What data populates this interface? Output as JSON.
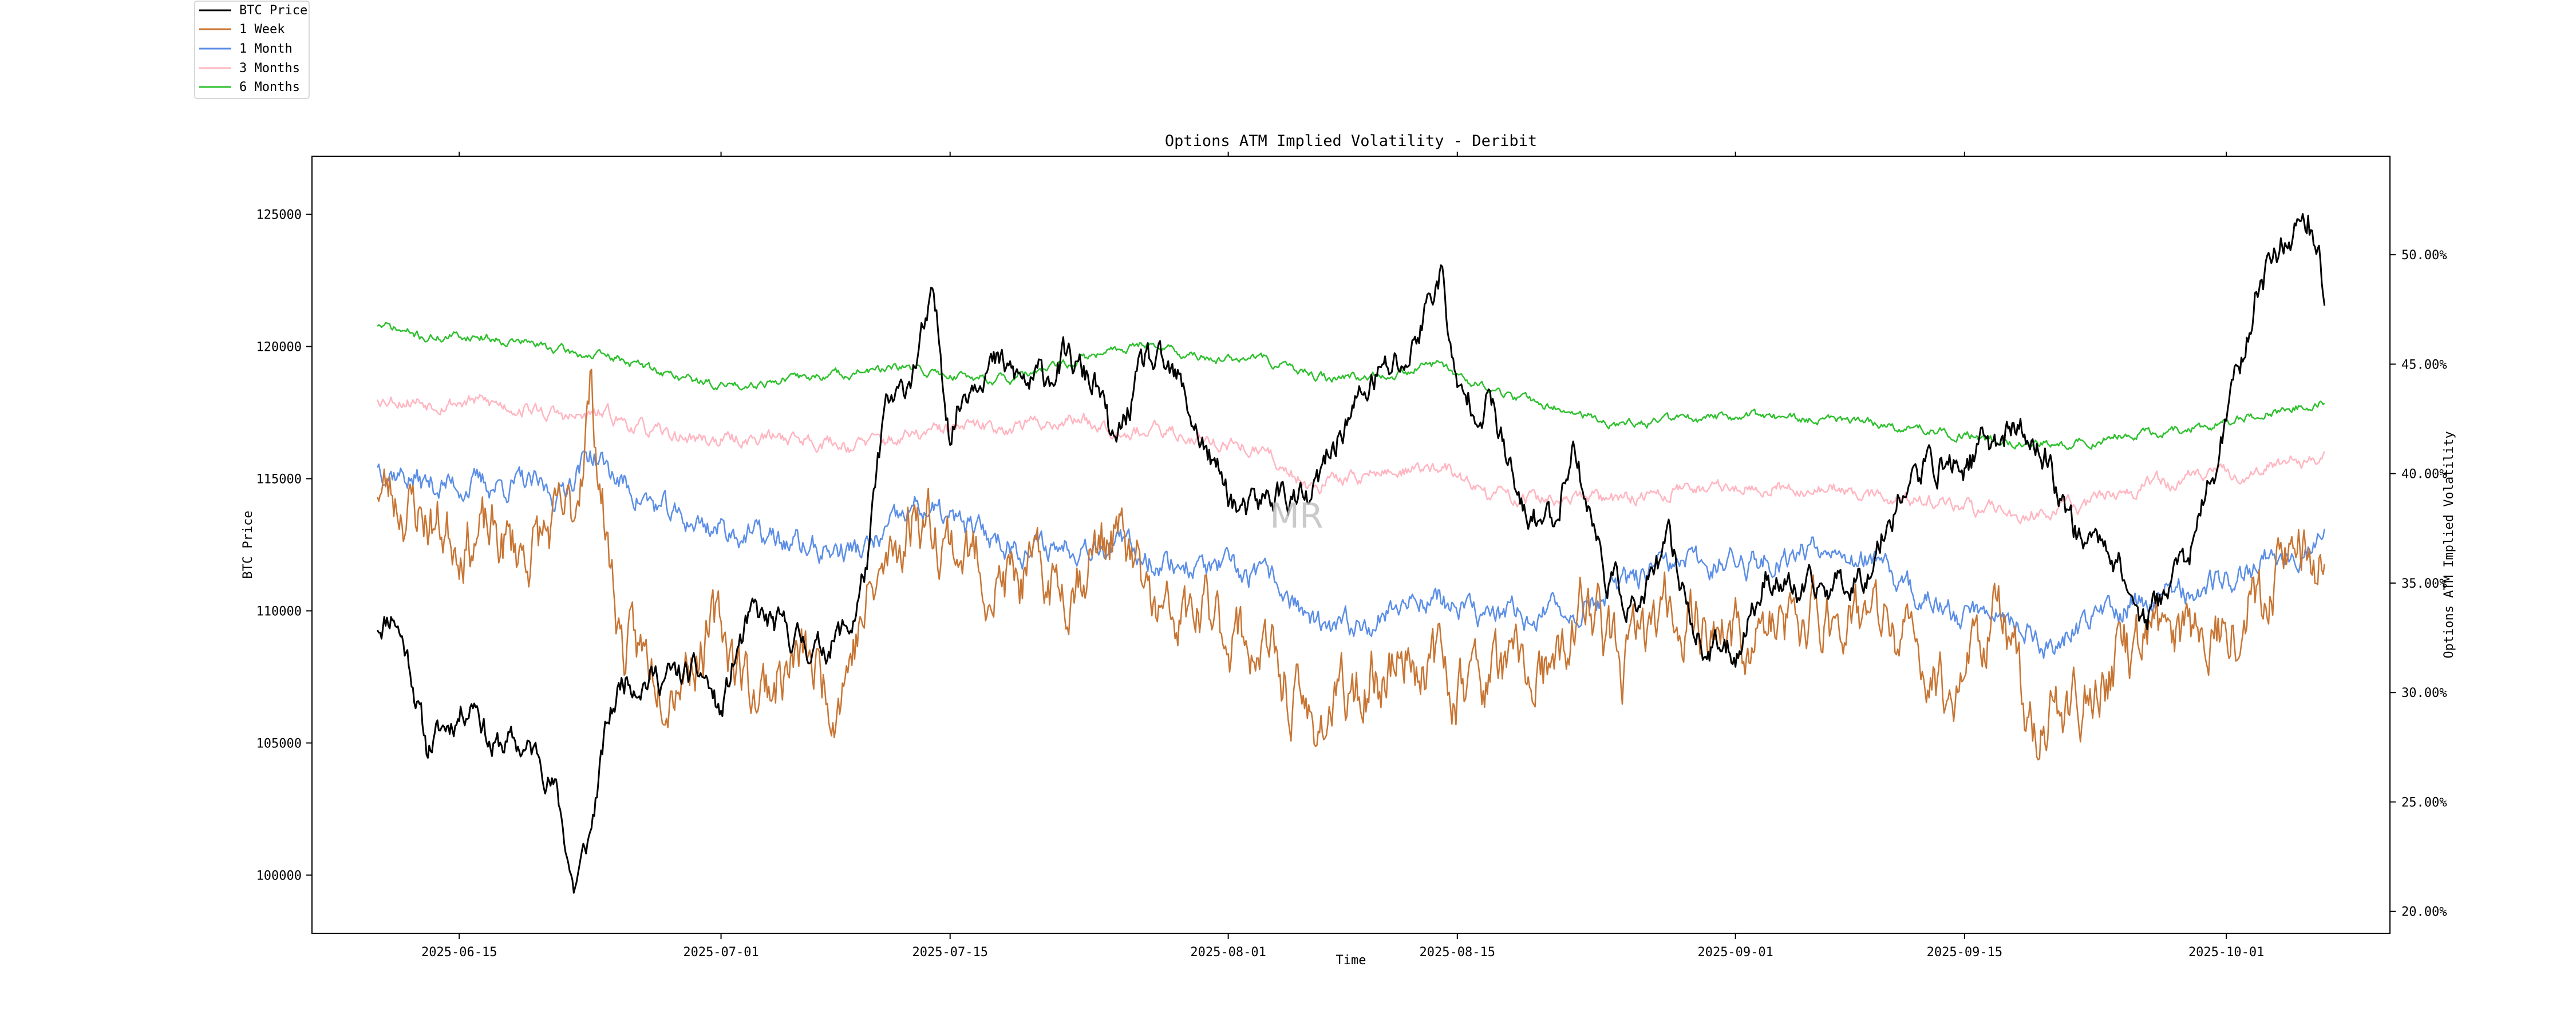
{
  "chart_data": {
    "type": "line",
    "title": "Options ATM Implied Volatility - Deribit",
    "xlabel": "Time",
    "ylabel_left": "BTC Price",
    "ylabel_right": "Options ATM Implied Volatility",
    "watermark": "MR",
    "x_start": "2025-06-10",
    "x_end": "2025-10-07",
    "xlim": [
      "2025-06-06",
      "2025-10-11"
    ],
    "x_ticks": [
      "2025-06-15",
      "2025-07-01",
      "2025-07-15",
      "2025-08-01",
      "2025-08-15",
      "2025-09-01",
      "2025-09-15",
      "2025-10-01"
    ],
    "ylim_left": [
      97800,
      127200
    ],
    "y_ticks_left": [
      "100000",
      "105000",
      "110000",
      "115000",
      "120000",
      "125000"
    ],
    "ylim_right": [
      19.0,
      54.5
    ],
    "y_ticks_right": [
      "20.00%",
      "25.00%",
      "30.00%",
      "35.00%",
      "40.00%",
      "45.00%",
      "50.00%"
    ],
    "y_tick_values_right": [
      20,
      25,
      30,
      35,
      40,
      45,
      50
    ],
    "legend_position": "top-left outside",
    "series": [
      {
        "name": "BTC Price",
        "axis": "left",
        "color": "#000000",
        "noise": 0.004,
        "seed": 11,
        "anchors": [
          [
            "2025-06-10",
            109500
          ],
          [
            "2025-06-11",
            110000
          ],
          [
            "2025-06-12",
            108000
          ],
          [
            "2025-06-13",
            104800
          ],
          [
            "2025-06-14",
            105500
          ],
          [
            "2025-06-16",
            106800
          ],
          [
            "2025-06-17",
            104800
          ],
          [
            "2025-06-18",
            105000
          ],
          [
            "2025-06-20",
            104500
          ],
          [
            "2025-06-21",
            103000
          ],
          [
            "2025-06-22",
            99500
          ],
          [
            "2025-06-23",
            101500
          ],
          [
            "2025-06-24",
            105500
          ],
          [
            "2025-06-25",
            107500
          ],
          [
            "2025-06-28",
            107500
          ],
          [
            "2025-06-30",
            107500
          ],
          [
            "2025-07-01",
            106000
          ],
          [
            "2025-07-02",
            108500
          ],
          [
            "2025-07-03",
            109800
          ],
          [
            "2025-07-07",
            108500
          ],
          [
            "2025-07-09",
            109500
          ],
          [
            "2025-07-10",
            112000
          ],
          [
            "2025-07-11",
            117500
          ],
          [
            "2025-07-12",
            118000
          ],
          [
            "2025-07-14",
            121500
          ],
          [
            "2025-07-15",
            117000
          ],
          [
            "2025-07-16",
            118500
          ],
          [
            "2025-07-17",
            119500
          ],
          [
            "2025-07-20",
            118500
          ],
          [
            "2025-07-22",
            119500
          ],
          [
            "2025-07-24",
            118500
          ],
          [
            "2025-07-25",
            116000
          ],
          [
            "2025-07-27",
            119500
          ],
          [
            "2025-07-29",
            118500
          ],
          [
            "2025-07-31",
            115500
          ],
          [
            "2025-08-02",
            113500
          ],
          [
            "2025-08-04",
            114500
          ],
          [
            "2025-08-06",
            114000
          ],
          [
            "2025-08-08",
            117000
          ],
          [
            "2025-08-10",
            118800
          ],
          [
            "2025-08-12",
            119500
          ],
          [
            "2025-08-14",
            123000
          ],
          [
            "2025-08-15",
            118000
          ],
          [
            "2025-08-17",
            118000
          ],
          [
            "2025-08-19",
            113500
          ],
          [
            "2025-08-21",
            113500
          ],
          [
            "2025-08-22",
            116500
          ],
          [
            "2025-08-24",
            111500
          ],
          [
            "2025-08-26",
            110000
          ],
          [
            "2025-08-28",
            112500
          ],
          [
            "2025-08-30",
            108500
          ],
          [
            "2025-09-01",
            108500
          ],
          [
            "2025-09-03",
            111500
          ],
          [
            "2025-09-05",
            110500
          ],
          [
            "2025-09-07",
            111000
          ],
          [
            "2025-09-09",
            111500
          ],
          [
            "2025-09-11",
            114500
          ],
          [
            "2025-09-13",
            115500
          ],
          [
            "2025-09-15",
            115500
          ],
          [
            "2025-09-18",
            117000
          ],
          [
            "2025-09-20",
            115800
          ],
          [
            "2025-09-22",
            112800
          ],
          [
            "2025-09-24",
            112500
          ],
          [
            "2025-09-26",
            109500
          ],
          [
            "2025-09-29",
            112500
          ],
          [
            "2025-10-01",
            117000
          ],
          [
            "2025-10-03",
            122500
          ],
          [
            "2025-10-05",
            124500
          ],
          [
            "2025-10-06",
            125000
          ],
          [
            "2025-10-07",
            122000
          ]
        ]
      },
      {
        "name": "1 Week",
        "axis": "right",
        "color": "#c87533",
        "noise": 1.1,
        "seed": 23,
        "anchors": [
          [
            "2025-06-10",
            39.5
          ],
          [
            "2025-06-12",
            38.5
          ],
          [
            "2025-06-14",
            37.5
          ],
          [
            "2025-06-17",
            37.0
          ],
          [
            "2025-06-19",
            36.5
          ],
          [
            "2025-06-22",
            38.0
          ],
          [
            "2025-06-23",
            44.0
          ],
          [
            "2025-06-24",
            37.0
          ],
          [
            "2025-06-25",
            32.0
          ],
          [
            "2025-06-28",
            31.0
          ],
          [
            "2025-07-01",
            33.0
          ],
          [
            "2025-07-03",
            30.0
          ],
          [
            "2025-07-06",
            31.5
          ],
          [
            "2025-07-08",
            30.0
          ],
          [
            "2025-07-10",
            34.0
          ],
          [
            "2025-07-13",
            38.5
          ],
          [
            "2025-07-15",
            37.0
          ],
          [
            "2025-07-18",
            35.0
          ],
          [
            "2025-07-22",
            35.0
          ],
          [
            "2025-07-25",
            37.5
          ],
          [
            "2025-07-28",
            33.0
          ],
          [
            "2025-07-31",
            33.5
          ],
          [
            "2025-08-03",
            32.0
          ],
          [
            "2025-08-06",
            28.5
          ],
          [
            "2025-08-09",
            30.0
          ],
          [
            "2025-08-12",
            32.0
          ],
          [
            "2025-08-15",
            30.5
          ],
          [
            "2025-08-18",
            31.0
          ],
          [
            "2025-08-21",
            30.5
          ],
          [
            "2025-08-23",
            34.5
          ],
          [
            "2025-08-25",
            31.0
          ],
          [
            "2025-08-28",
            34.0
          ],
          [
            "2025-09-01",
            32.5
          ],
          [
            "2025-09-05",
            33.0
          ],
          [
            "2025-09-08",
            34.0
          ],
          [
            "2025-09-11",
            32.5
          ],
          [
            "2025-09-14",
            30.0
          ],
          [
            "2025-09-17",
            34.0
          ],
          [
            "2025-09-19",
            28.5
          ],
          [
            "2025-09-22",
            29.5
          ],
          [
            "2025-09-26",
            32.5
          ],
          [
            "2025-09-29",
            33.0
          ],
          [
            "2025-10-02",
            33.5
          ],
          [
            "2025-10-05",
            37.0
          ],
          [
            "2025-10-07",
            35.5
          ]
        ]
      },
      {
        "name": "1 Month",
        "axis": "right",
        "color": "#5b8ee6",
        "noise": 0.45,
        "seed": 37,
        "anchors": [
          [
            "2025-06-10",
            40.5
          ],
          [
            "2025-06-13",
            39.5
          ],
          [
            "2025-06-16",
            39.5
          ],
          [
            "2025-06-19",
            39.5
          ],
          [
            "2025-06-21",
            39.0
          ],
          [
            "2025-06-23",
            41.0
          ],
          [
            "2025-06-25",
            39.5
          ],
          [
            "2025-06-28",
            38.0
          ],
          [
            "2025-07-01",
            37.5
          ],
          [
            "2025-07-04",
            37.0
          ],
          [
            "2025-07-07",
            36.5
          ],
          [
            "2025-07-10",
            36.5
          ],
          [
            "2025-07-13",
            38.5
          ],
          [
            "2025-07-16",
            37.5
          ],
          [
            "2025-07-20",
            36.5
          ],
          [
            "2025-07-24",
            37.0
          ],
          [
            "2025-07-28",
            36.0
          ],
          [
            "2025-08-01",
            35.5
          ],
          [
            "2025-08-04",
            35.0
          ],
          [
            "2025-08-07",
            32.5
          ],
          [
            "2025-08-10",
            33.5
          ],
          [
            "2025-08-13",
            34.5
          ],
          [
            "2025-08-16",
            33.5
          ],
          [
            "2025-08-20",
            33.5
          ],
          [
            "2025-08-23",
            34.0
          ],
          [
            "2025-08-27",
            35.5
          ],
          [
            "2025-08-31",
            36.0
          ],
          [
            "2025-09-03",
            36.0
          ],
          [
            "2025-09-07",
            37.0
          ],
          [
            "2025-09-10",
            35.5
          ],
          [
            "2025-09-14",
            33.5
          ],
          [
            "2025-09-17",
            34.0
          ],
          [
            "2025-09-20",
            32.0
          ],
          [
            "2025-09-23",
            33.5
          ],
          [
            "2025-09-27",
            34.5
          ],
          [
            "2025-10-01",
            35.0
          ],
          [
            "2025-10-04",
            36.5
          ],
          [
            "2025-10-07",
            37.0
          ]
        ]
      },
      {
        "name": "3 Months",
        "axis": "right",
        "color": "#ffb6c1",
        "noise": 0.25,
        "seed": 53,
        "anchors": [
          [
            "2025-06-10",
            43.5
          ],
          [
            "2025-06-13",
            43.3
          ],
          [
            "2025-06-16",
            43.3
          ],
          [
            "2025-06-19",
            43.0
          ],
          [
            "2025-06-22",
            42.5
          ],
          [
            "2025-06-24",
            42.7
          ],
          [
            "2025-06-27",
            41.8
          ],
          [
            "2025-07-01",
            41.5
          ],
          [
            "2025-07-05",
            41.7
          ],
          [
            "2025-07-09",
            41.3
          ],
          [
            "2025-07-12",
            41.6
          ],
          [
            "2025-07-15",
            42.0
          ],
          [
            "2025-07-19",
            42.2
          ],
          [
            "2025-07-23",
            42.5
          ],
          [
            "2025-07-26",
            42.0
          ],
          [
            "2025-07-30",
            41.7
          ],
          [
            "2025-08-03",
            41.0
          ],
          [
            "2025-08-06",
            39.5
          ],
          [
            "2025-08-10",
            40.0
          ],
          [
            "2025-08-14",
            40.3
          ],
          [
            "2025-08-17",
            39.0
          ],
          [
            "2025-08-21",
            38.8
          ],
          [
            "2025-08-25",
            38.8
          ],
          [
            "2025-08-29",
            39.3
          ],
          [
            "2025-09-02",
            39.5
          ],
          [
            "2025-09-06",
            39.3
          ],
          [
            "2025-09-10",
            39.0
          ],
          [
            "2025-09-14",
            38.5
          ],
          [
            "2025-09-18",
            38.2
          ],
          [
            "2025-09-22",
            38.5
          ],
          [
            "2025-09-26",
            39.5
          ],
          [
            "2025-09-30",
            39.8
          ],
          [
            "2025-10-04",
            40.3
          ],
          [
            "2025-10-07",
            40.7
          ]
        ]
      },
      {
        "name": "6 Months",
        "axis": "right",
        "color": "#2ec02e",
        "noise": 0.15,
        "seed": 71,
        "anchors": [
          [
            "2025-06-10",
            46.8
          ],
          [
            "2025-06-13",
            46.2
          ],
          [
            "2025-06-16",
            46.3
          ],
          [
            "2025-06-19",
            46.0
          ],
          [
            "2025-06-22",
            45.5
          ],
          [
            "2025-06-25",
            45.2
          ],
          [
            "2025-06-28",
            44.5
          ],
          [
            "2025-07-01",
            44.0
          ],
          [
            "2025-07-05",
            44.3
          ],
          [
            "2025-07-09",
            44.6
          ],
          [
            "2025-07-12",
            44.8
          ],
          [
            "2025-07-15",
            44.5
          ],
          [
            "2025-07-19",
            44.3
          ],
          [
            "2025-07-23",
            45.2
          ],
          [
            "2025-07-27",
            46.0
          ],
          [
            "2025-07-30",
            45.3
          ],
          [
            "2025-08-03",
            45.2
          ],
          [
            "2025-08-07",
            44.3
          ],
          [
            "2025-08-11",
            44.6
          ],
          [
            "2025-08-14",
            45.0
          ],
          [
            "2025-08-17",
            43.8
          ],
          [
            "2025-08-21",
            43.0
          ],
          [
            "2025-08-25",
            42.2
          ],
          [
            "2025-08-28",
            42.4
          ],
          [
            "2025-09-01",
            42.6
          ],
          [
            "2025-09-05",
            42.5
          ],
          [
            "2025-09-09",
            42.3
          ],
          [
            "2025-09-13",
            42.0
          ],
          [
            "2025-09-17",
            41.5
          ],
          [
            "2025-09-21",
            41.3
          ],
          [
            "2025-09-25",
            41.8
          ],
          [
            "2025-09-29",
            42.1
          ],
          [
            "2025-10-03",
            42.7
          ],
          [
            "2025-10-07",
            43.3
          ]
        ]
      }
    ]
  }
}
